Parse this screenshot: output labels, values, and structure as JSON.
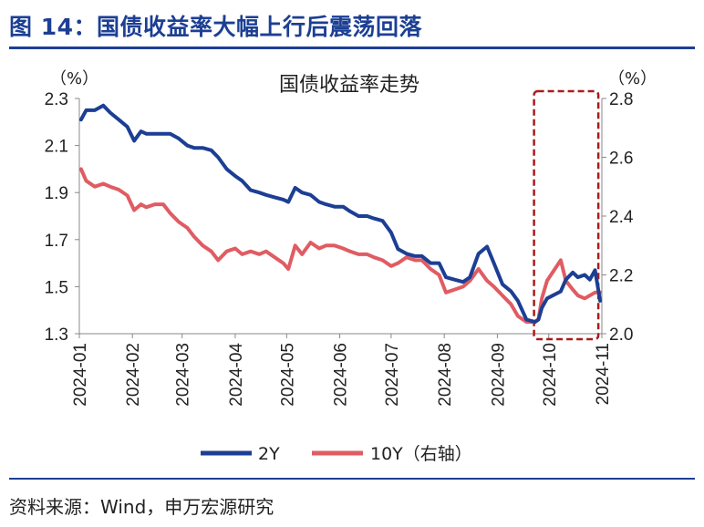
{
  "figure": {
    "title": "图 14：国债收益率大幅上行后震荡回落",
    "source": "资料来源：Wind，申万宏源研究"
  },
  "chart_data": {
    "type": "line",
    "title": "国债收益率走势",
    "y_left": {
      "unit": "（%）",
      "ylim": [
        1.3,
        2.3
      ],
      "ticks": [
        "2.3",
        "2.1",
        "1.9",
        "1.7",
        "1.5",
        "1.3"
      ]
    },
    "y_right": {
      "unit": "（%）",
      "ylim": [
        2.0,
        2.8
      ],
      "ticks": [
        "2.8",
        "2.6",
        "2.4",
        "2.2",
        "2.0"
      ]
    },
    "x_ticks": [
      "2024-01",
      "2024-02",
      "2024-03",
      "2024-04",
      "2024-05",
      "2024-06",
      "2024-07",
      "2024-08",
      "2024-09",
      "2024-10",
      "2024-11"
    ],
    "x_range": [
      "2024-01-01",
      "2024-11-01"
    ],
    "grid": false,
    "legend_position": "bottom-center",
    "highlight": {
      "x_range": [
        "2024-09-24",
        "2024-10-31"
      ],
      "style": "dashed-box",
      "color": "#a81c1c"
    },
    "series": [
      {
        "name": "2Y",
        "axis": "left",
        "color": "#1c3f94",
        "x": [
          "2024-01-02",
          "2024-01-05",
          "2024-01-10",
          "2024-01-15",
          "2024-01-19",
          "2024-01-24",
          "2024-01-29",
          "2024-02-02",
          "2024-02-06",
          "2024-02-09",
          "2024-02-14",
          "2024-02-19",
          "2024-02-23",
          "2024-02-28",
          "2024-03-04",
          "2024-03-08",
          "2024-03-13",
          "2024-03-18",
          "2024-03-22",
          "2024-03-27",
          "2024-04-01",
          "2024-04-05",
          "2024-04-10",
          "2024-04-15",
          "2024-04-19",
          "2024-04-24",
          "2024-04-29",
          "2024-05-02",
          "2024-05-06",
          "2024-05-10",
          "2024-05-15",
          "2024-05-20",
          "2024-05-24",
          "2024-05-29",
          "2024-06-03",
          "2024-06-07",
          "2024-06-12",
          "2024-06-17",
          "2024-06-21",
          "2024-06-26",
          "2024-07-01",
          "2024-07-05",
          "2024-07-10",
          "2024-07-15",
          "2024-07-19",
          "2024-07-24",
          "2024-07-29",
          "2024-08-02",
          "2024-08-07",
          "2024-08-12",
          "2024-08-16",
          "2024-08-21",
          "2024-08-26",
          "2024-08-30",
          "2024-09-04",
          "2024-09-09",
          "2024-09-13",
          "2024-09-18",
          "2024-09-23",
          "2024-09-25",
          "2024-09-27",
          "2024-09-30",
          "2024-10-08",
          "2024-10-11",
          "2024-10-15",
          "2024-10-18",
          "2024-10-22",
          "2024-10-25",
          "2024-10-28",
          "2024-10-31"
        ],
        "values": [
          2.21,
          2.25,
          2.25,
          2.27,
          2.24,
          2.21,
          2.18,
          2.12,
          2.16,
          2.15,
          2.15,
          2.15,
          2.15,
          2.13,
          2.1,
          2.09,
          2.09,
          2.08,
          2.05,
          2.0,
          1.97,
          1.95,
          1.91,
          1.9,
          1.89,
          1.88,
          1.87,
          1.86,
          1.92,
          1.9,
          1.89,
          1.86,
          1.85,
          1.84,
          1.84,
          1.82,
          1.8,
          1.8,
          1.79,
          1.78,
          1.73,
          1.66,
          1.64,
          1.63,
          1.63,
          1.6,
          1.6,
          1.54,
          1.53,
          1.52,
          1.54,
          1.64,
          1.67,
          1.6,
          1.51,
          1.48,
          1.44,
          1.36,
          1.35,
          1.36,
          1.41,
          1.45,
          1.48,
          1.53,
          1.56,
          1.54,
          1.55,
          1.53,
          1.57,
          1.44
        ]
      },
      {
        "name": "10Y（右轴）",
        "axis": "right",
        "color": "#e05c63",
        "x": [
          "2024-01-02",
          "2024-01-05",
          "2024-01-10",
          "2024-01-15",
          "2024-01-19",
          "2024-01-24",
          "2024-01-29",
          "2024-02-02",
          "2024-02-06",
          "2024-02-09",
          "2024-02-14",
          "2024-02-19",
          "2024-02-23",
          "2024-02-28",
          "2024-03-04",
          "2024-03-08",
          "2024-03-13",
          "2024-03-18",
          "2024-03-22",
          "2024-03-27",
          "2024-04-01",
          "2024-04-05",
          "2024-04-10",
          "2024-04-15",
          "2024-04-19",
          "2024-04-24",
          "2024-04-29",
          "2024-05-02",
          "2024-05-06",
          "2024-05-10",
          "2024-05-15",
          "2024-05-20",
          "2024-05-24",
          "2024-05-29",
          "2024-06-03",
          "2024-06-07",
          "2024-06-12",
          "2024-06-17",
          "2024-06-21",
          "2024-06-26",
          "2024-07-01",
          "2024-07-05",
          "2024-07-10",
          "2024-07-15",
          "2024-07-19",
          "2024-07-24",
          "2024-07-29",
          "2024-08-02",
          "2024-08-07",
          "2024-08-12",
          "2024-08-16",
          "2024-08-21",
          "2024-08-26",
          "2024-08-30",
          "2024-09-04",
          "2024-09-09",
          "2024-09-13",
          "2024-09-18",
          "2024-09-23",
          "2024-09-25",
          "2024-09-27",
          "2024-09-30",
          "2024-10-08",
          "2024-10-11",
          "2024-10-15",
          "2024-10-18",
          "2024-10-22",
          "2024-10-25",
          "2024-10-28",
          "2024-10-31"
        ],
        "values": [
          2.56,
          2.52,
          2.5,
          2.51,
          2.5,
          2.49,
          2.47,
          2.42,
          2.44,
          2.43,
          2.44,
          2.44,
          2.41,
          2.38,
          2.36,
          2.33,
          2.3,
          2.28,
          2.25,
          2.28,
          2.29,
          2.27,
          2.28,
          2.27,
          2.28,
          2.26,
          2.24,
          2.22,
          2.3,
          2.27,
          2.31,
          2.29,
          2.3,
          2.3,
          2.29,
          2.28,
          2.27,
          2.27,
          2.26,
          2.25,
          2.23,
          2.24,
          2.26,
          2.25,
          2.25,
          2.22,
          2.2,
          2.14,
          2.15,
          2.16,
          2.18,
          2.22,
          2.18,
          2.16,
          2.13,
          2.1,
          2.06,
          2.04,
          2.04,
          2.05,
          2.12,
          2.18,
          2.25,
          2.18,
          2.15,
          2.13,
          2.12,
          2.13,
          2.14,
          2.14
        ]
      }
    ]
  }
}
